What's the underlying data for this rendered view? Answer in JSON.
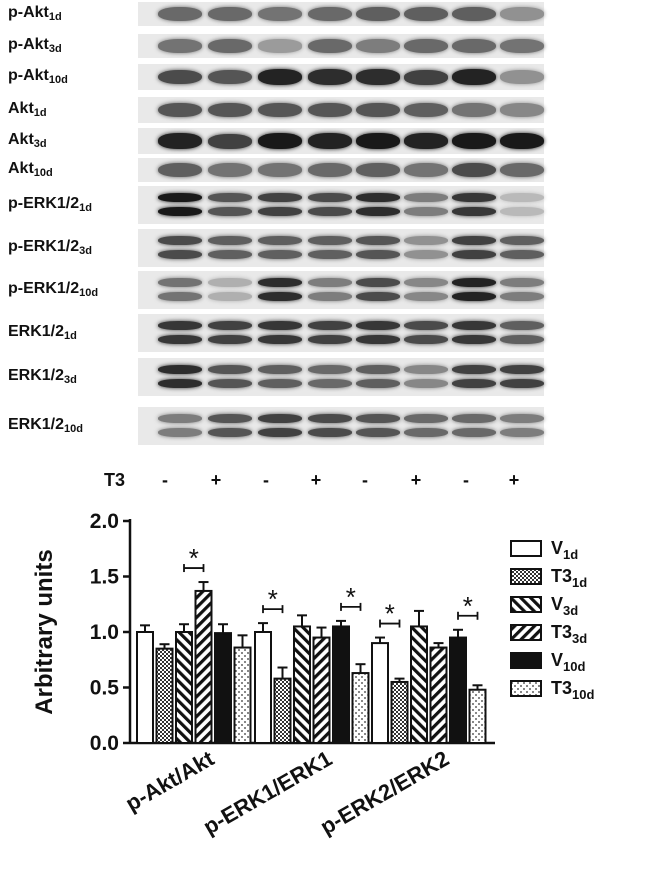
{
  "blots": {
    "rows": [
      {
        "base": "p-Akt",
        "sub": "1d"
      },
      {
        "base": "p-Akt",
        "sub": "3d"
      },
      {
        "base": "p-Akt",
        "sub": "10d"
      },
      {
        "base": "Akt",
        "sub": "1d"
      },
      {
        "base": "Akt",
        "sub": "3d"
      },
      {
        "base": "Akt",
        "sub": "10d"
      },
      {
        "base": "p-ERK1/2",
        "sub": "1d"
      },
      {
        "base": "p-ERK1/2",
        "sub": "3d"
      },
      {
        "base": "p-ERK1/2",
        "sub": "10d"
      },
      {
        "base": "ERK1/2",
        "sub": "1d"
      },
      {
        "base": "ERK1/2",
        "sub": "3d"
      },
      {
        "base": "ERK1/2",
        "sub": "10d"
      }
    ]
  },
  "treatment": {
    "label": "T3",
    "signs": [
      "-",
      "+",
      "-",
      "+",
      "-",
      "+",
      "-",
      "+"
    ]
  },
  "chart_data": {
    "type": "bar",
    "ylabel": "Arbitrary units",
    "xlabel": "",
    "ylim": [
      0,
      2.0
    ],
    "yticks": [
      "0.0",
      "0.5",
      "1.0",
      "1.5",
      "2.0"
    ],
    "categories": [
      "p-Akt/Akt",
      "p-ERK1/ERK1",
      "p-ERK2/ERK2"
    ],
    "legend_position": "right",
    "series": [
      {
        "name": "V",
        "sub": "1d",
        "pattern": "white",
        "values": [
          1.0,
          1.0,
          0.9
        ],
        "errors": [
          0.06,
          0.08,
          0.05
        ]
      },
      {
        "name": "T3",
        "sub": "1d",
        "pattern": "checker",
        "values": [
          0.85,
          0.58,
          0.55
        ],
        "errors": [
          0.04,
          0.1,
          0.03
        ]
      },
      {
        "name": "V",
        "sub": "3d",
        "pattern": "back-hatch",
        "values": [
          1.0,
          1.05,
          1.05
        ],
        "errors": [
          0.07,
          0.1,
          0.14
        ]
      },
      {
        "name": "T3",
        "sub": "3d",
        "pattern": "fwd-hatch",
        "values": [
          1.37,
          0.95,
          0.86
        ],
        "errors": [
          0.08,
          0.09,
          0.04
        ]
      },
      {
        "name": "V",
        "sub": "10d",
        "pattern": "black",
        "values": [
          0.99,
          1.05,
          0.95
        ],
        "errors": [
          0.08,
          0.05,
          0.07
        ]
      },
      {
        "name": "T3",
        "sub": "10d",
        "pattern": "dots",
        "values": [
          0.86,
          0.63,
          0.48
        ],
        "errors": [
          0.11,
          0.08,
          0.04
        ]
      }
    ],
    "significance": [
      {
        "group": 0,
        "from": 2,
        "to": 3,
        "label": "*"
      },
      {
        "group": 1,
        "from": 0,
        "to": 1,
        "label": "*"
      },
      {
        "group": 1,
        "from": 4,
        "to": 5,
        "label": "*"
      },
      {
        "group": 2,
        "from": 0,
        "to": 1,
        "label": "*"
      },
      {
        "group": 2,
        "from": 4,
        "to": 5,
        "label": "*"
      }
    ]
  }
}
